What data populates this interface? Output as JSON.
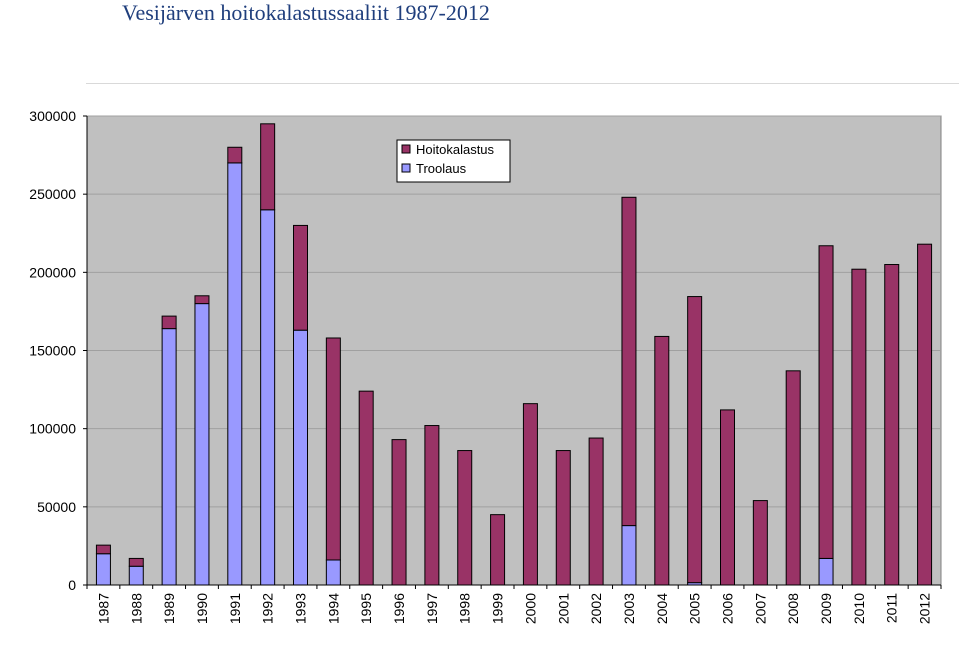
{
  "chart_data": {
    "type": "bar",
    "stacked": true,
    "title": "Vesijärven hoitokalastussaaliit 1987-2012",
    "xlabel": "",
    "ylabel": "",
    "ylim": [
      0,
      300000
    ],
    "yticks": [
      "0",
      "50000",
      "100000",
      "150000",
      "200000",
      "250000",
      "300000"
    ],
    "categories": [
      "1987",
      "1988",
      "1989",
      "1990",
      "1991",
      "1992",
      "1993",
      "1994",
      "1995",
      "1996",
      "1997",
      "1998",
      "1999",
      "2000",
      "2001",
      "2002",
      "2003",
      "2004",
      "2005",
      "2006",
      "2007",
      "2008",
      "2009",
      "2010",
      "2011",
      "2012"
    ],
    "series": [
      {
        "name": "Troolaus",
        "color": "#9999ff",
        "values": [
          20000,
          12000,
          164000,
          180000,
          270000,
          240000,
          163000,
          16000,
          0,
          0,
          0,
          0,
          0,
          0,
          0,
          0,
          38000,
          0,
          1500,
          0,
          0,
          0,
          17000,
          0,
          0,
          0
        ]
      },
      {
        "name": "Hoitokalastus",
        "color": "#993366",
        "values": [
          5500,
          5000,
          8000,
          5000,
          10000,
          55000,
          67000,
          142000,
          124000,
          93000,
          102000,
          86000,
          45000,
          116000,
          86000,
          94000,
          210000,
          159000,
          183000,
          112000,
          54000,
          137000,
          200000,
          202000,
          205000,
          218000
        ]
      }
    ],
    "legend": {
      "position": "top-center",
      "entries": [
        "Hoitokalastus",
        "Troolaus"
      ]
    },
    "grid": true,
    "plot_background": "#c0c0c0",
    "gridline_color": "#a0a0a0"
  }
}
